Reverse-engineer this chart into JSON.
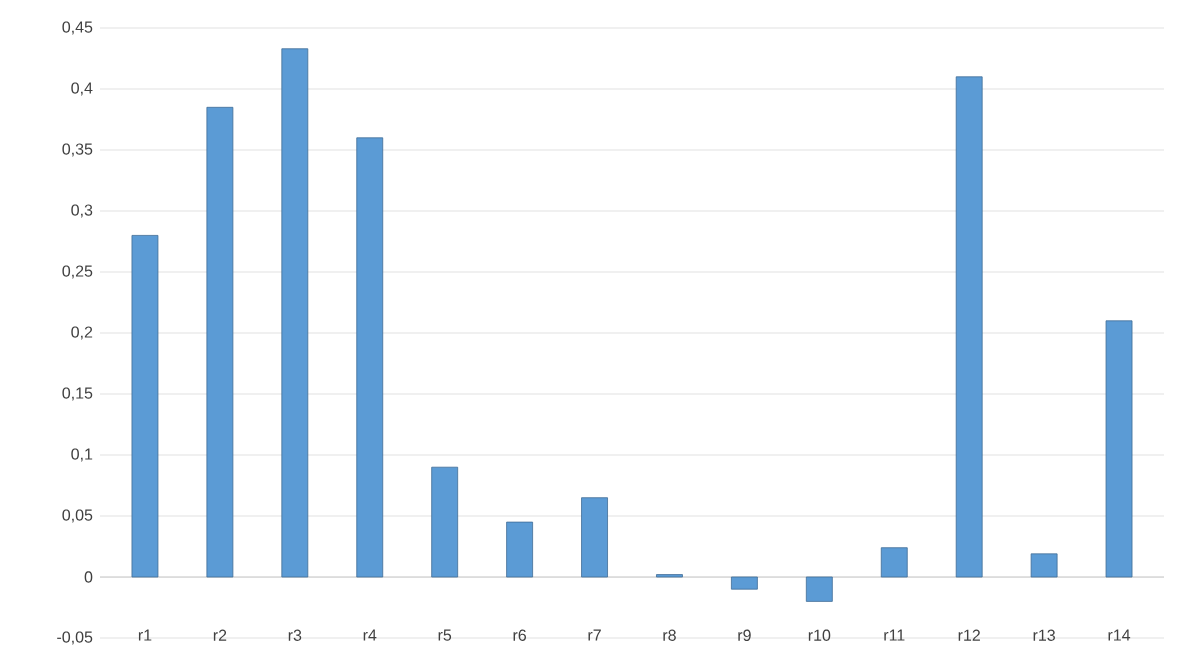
{
  "chart_data": {
    "type": "bar",
    "categories": [
      "r1",
      "r2",
      "r3",
      "r4",
      "r5",
      "r6",
      "r7",
      "r8",
      "r9",
      "r10",
      "r11",
      "r12",
      "r13",
      "r14"
    ],
    "values": [
      0.28,
      0.385,
      0.433,
      0.36,
      0.09,
      0.045,
      0.065,
      0.002,
      -0.01,
      -0.02,
      0.024,
      0.41,
      0.019,
      0.21
    ],
    "color": "#5b9bd5",
    "ylim": [
      -0.05,
      0.45
    ],
    "yticks": [
      {
        "value": -0.05,
        "label": "-0,05"
      },
      {
        "value": 0,
        "label": "0"
      },
      {
        "value": 0.05,
        "label": "0,05"
      },
      {
        "value": 0.1,
        "label": "0,1"
      },
      {
        "value": 0.15,
        "label": "0,15"
      },
      {
        "value": 0.2,
        "label": "0,2"
      },
      {
        "value": 0.25,
        "label": "0,25"
      },
      {
        "value": 0.3,
        "label": "0,3"
      },
      {
        "value": 0.35,
        "label": "0,35"
      },
      {
        "value": 0.4,
        "label": "0,4"
      },
      {
        "value": 0.45,
        "label": "0,45"
      }
    ],
    "grid": "y"
  }
}
